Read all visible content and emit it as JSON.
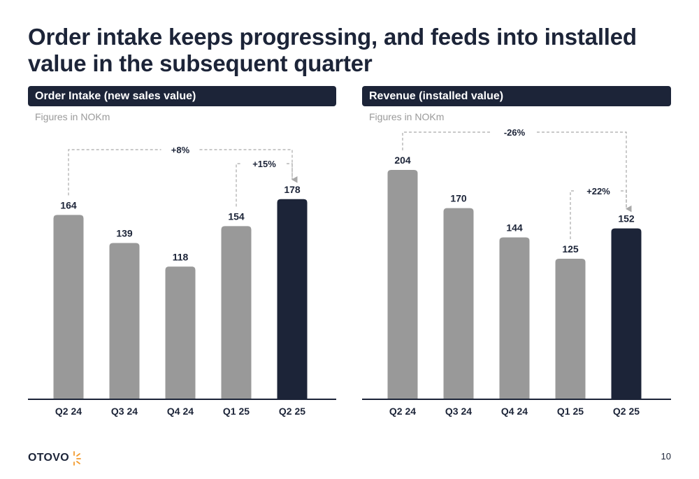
{
  "page": {
    "title": "Order intake keeps progressing, and feeds into installed value in the subsequent quarter",
    "page_number": "10",
    "logo_text": "OTOVO"
  },
  "colors": {
    "navy": "#1c2438",
    "bar_grey": "#999999",
    "label": "#1c2438",
    "dashed": "#a9a9a9"
  },
  "chart_data": [
    {
      "type": "bar",
      "header": "Order Intake (new sales value)",
      "subtitle": "Figures in NOKm",
      "categories": [
        "Q2 24",
        "Q3 24",
        "Q4 24",
        "Q1 25",
        "Q2 25"
      ],
      "values": [
        164,
        139,
        118,
        154,
        178
      ],
      "highlight_index": 4,
      "ylim": [
        0,
        204
      ],
      "annotations": [
        {
          "label": "+8%",
          "from_index": 0,
          "to_index": 4
        },
        {
          "label": "+15%",
          "from_index": 3,
          "to_index": 4
        }
      ]
    },
    {
      "type": "bar",
      "header": "Revenue (installed value)",
      "subtitle": "Figures in NOKm",
      "categories": [
        "Q2 24",
        "Q3 24",
        "Q4 24",
        "Q1 25",
        "Q2 25"
      ],
      "values": [
        204,
        170,
        144,
        125,
        152
      ],
      "highlight_index": 4,
      "ylim": [
        0,
        204
      ],
      "annotations": [
        {
          "label": "-26%",
          "from_index": 0,
          "to_index": 4
        },
        {
          "label": "+22%",
          "from_index": 3,
          "to_index": 4
        }
      ]
    }
  ]
}
